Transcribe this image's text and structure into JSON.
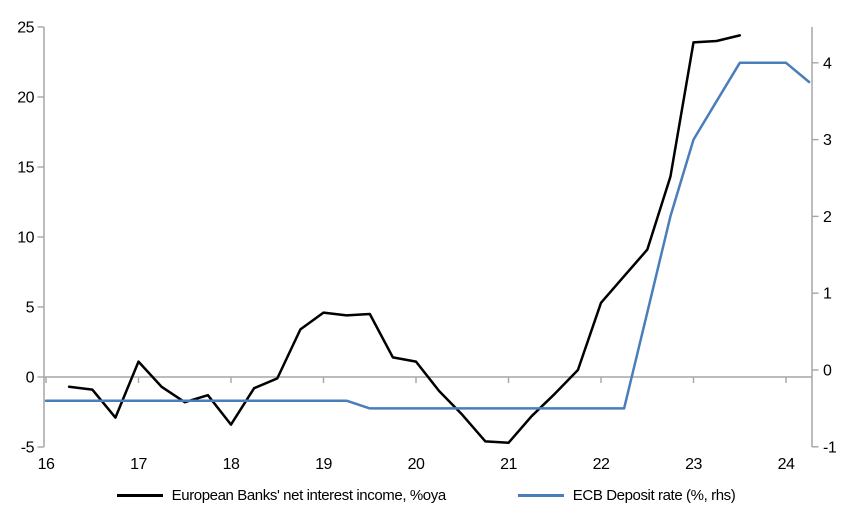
{
  "chart_data": {
    "type": "line",
    "title": "",
    "xlabel": "",
    "ylabel": "",
    "legend_position": "bottom",
    "gridlines": "horizontal zero line only",
    "x_axis": {
      "ticks": [
        16,
        17,
        18,
        19,
        20,
        21,
        22,
        23,
        24
      ],
      "range": [
        16,
        24.28
      ]
    },
    "left_axis": {
      "ticks": [
        25,
        20,
        15,
        10,
        5,
        0,
        -5
      ],
      "range": [
        -5,
        25
      ],
      "applies_to": "European Banks' net interest income, %oya"
    },
    "right_axis": {
      "ticks": [
        4,
        3,
        2,
        1,
        0,
        -1
      ],
      "range": [
        -1,
        4.45
      ],
      "applies_to": "ECB Deposit rate (%, rhs)"
    },
    "series": [
      {
        "name": "European Banks' net interest income, %oya",
        "axis": "left",
        "color": "#000000",
        "x": [
          16.25,
          16.5,
          16.75,
          17.0,
          17.25,
          17.5,
          17.75,
          18.0,
          18.25,
          18.5,
          18.75,
          19.0,
          19.25,
          19.5,
          19.75,
          20.0,
          20.25,
          20.5,
          20.75,
          21.0,
          21.25,
          21.5,
          21.75,
          22.0,
          22.25,
          22.5,
          22.75,
          23.0,
          23.25,
          23.5
        ],
        "values": [
          -0.7,
          -0.9,
          -2.9,
          1.1,
          -0.7,
          -1.8,
          -1.3,
          -3.4,
          -0.8,
          -0.1,
          3.4,
          4.6,
          4.4,
          4.5,
          1.4,
          1.1,
          -1.0,
          -2.7,
          -4.6,
          -4.7,
          -2.8,
          -1.2,
          0.5,
          5.3,
          7.2,
          9.1,
          14.3,
          23.9,
          24.0,
          24.4
        ]
      },
      {
        "name": "ECB Deposit rate (%, rhs)",
        "axis": "right",
        "color": "#4a7ebb",
        "x": [
          16.0,
          16.25,
          16.5,
          16.75,
          17.0,
          17.25,
          17.5,
          17.75,
          18.0,
          18.25,
          18.5,
          18.75,
          19.0,
          19.25,
          19.5,
          19.75,
          20.0,
          20.25,
          20.5,
          20.75,
          21.0,
          21.25,
          21.5,
          21.75,
          22.0,
          22.25,
          22.5,
          22.75,
          23.0,
          23.25,
          23.5,
          23.75,
          24.0,
          24.25
        ],
        "values": [
          -0.4,
          -0.4,
          -0.4,
          -0.4,
          -0.4,
          -0.4,
          -0.4,
          -0.4,
          -0.4,
          -0.4,
          -0.4,
          -0.4,
          -0.4,
          -0.4,
          -0.5,
          -0.5,
          -0.5,
          -0.5,
          -0.5,
          -0.5,
          -0.5,
          -0.5,
          -0.5,
          -0.5,
          -0.5,
          -0.5,
          0.75,
          2.0,
          3.0,
          3.5,
          4.0,
          4.0,
          4.0,
          3.75
        ]
      }
    ]
  },
  "colors": {
    "background": "#ffffff",
    "axis": "#a6a6a6",
    "text": "#000000",
    "nii_line": "#000000",
    "deposit_line": "#4a7ebb"
  }
}
